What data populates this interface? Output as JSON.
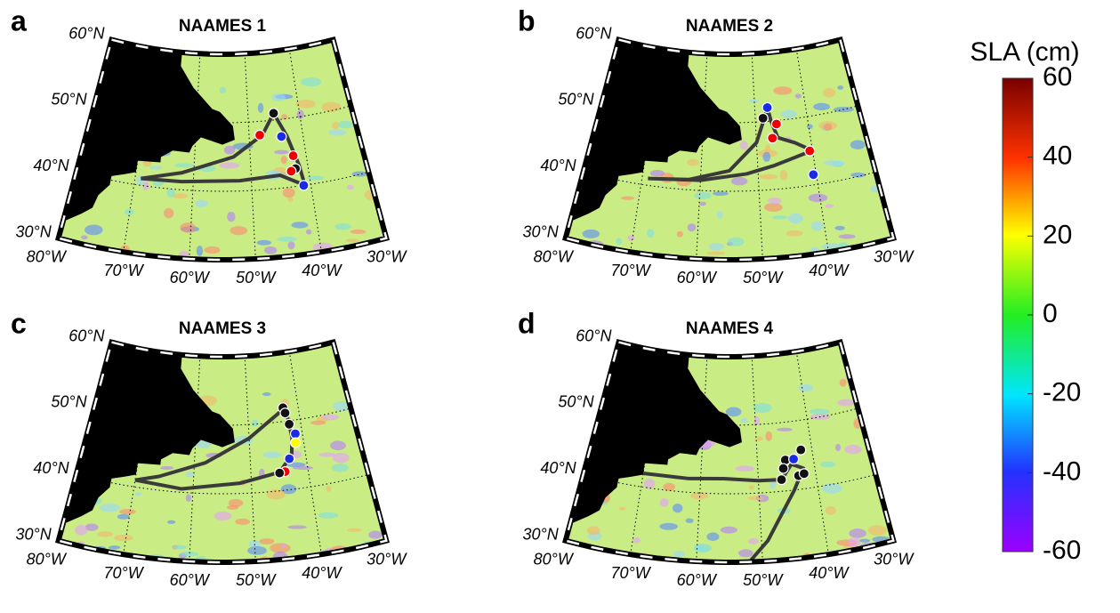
{
  "panels": [
    {
      "letter": "a",
      "title": "NAAMES 1",
      "lat_labels": [
        "60°N",
        "50°N",
        "40°N",
        "30°N"
      ],
      "lon_labels": [
        "80°W",
        "70°W",
        "60°W",
        "50°W",
        "40°W",
        "30°W"
      ]
    },
    {
      "letter": "b",
      "title": "NAAMES 2",
      "lat_labels": [
        "60°N",
        "50°N",
        "40°N",
        "30°N"
      ],
      "lon_labels": [
        "80°W",
        "70°W",
        "60°W",
        "50°W",
        "40°W",
        "30°W"
      ]
    },
    {
      "letter": "c",
      "title": "NAAMES 3",
      "lat_labels": [
        "60°N",
        "50°N",
        "40°N",
        "30°N"
      ],
      "lon_labels": [
        "80°W",
        "70°W",
        "60°W",
        "50°W",
        "40°W",
        "30°W"
      ]
    },
    {
      "letter": "d",
      "title": "NAAMES 4",
      "lat_labels": [
        "60°N",
        "50°N",
        "40°N",
        "30°N"
      ],
      "lon_labels": [
        "80°W",
        "70°W",
        "60°W",
        "50°W",
        "40°W",
        "30°W"
      ]
    }
  ],
  "colorbar": {
    "title": "SLA (cm)",
    "ylim": [
      -60,
      60
    ],
    "yticks": [
      60,
      40,
      20,
      0,
      -20,
      -40,
      -60
    ]
  }
}
